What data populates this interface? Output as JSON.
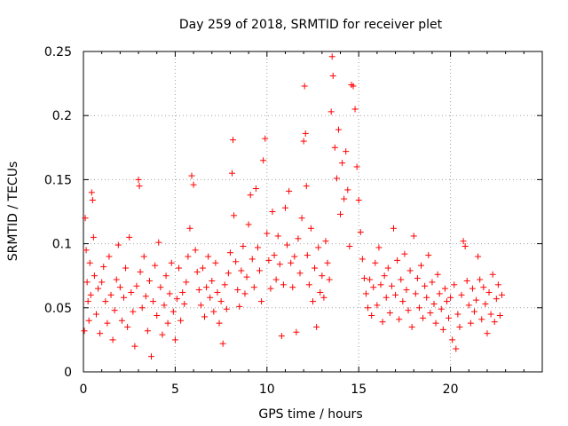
{
  "chart_data": {
    "type": "scatter",
    "title": "Day 259 of 2018, SRMTID for receiver plet",
    "xlabel": "GPS time / hours",
    "ylabel": "SRMTID / TECUs",
    "xlim": [
      0,
      25
    ],
    "ylim": [
      0,
      0.25
    ],
    "x_ticks": [
      0,
      5,
      10,
      15,
      20
    ],
    "x_tick_labels": [
      "0",
      "5",
      "10",
      "15",
      "20"
    ],
    "y_ticks": [
      0,
      0.05,
      0.1,
      0.15,
      0.2,
      0.25
    ],
    "y_tick_labels": [
      "0",
      "0.05",
      "0.1",
      "0.15",
      "0.2",
      "0.25"
    ],
    "grid": true,
    "marker": "+",
    "marker_color": "#ff0000",
    "series": [
      {
        "name": "plet",
        "points": [
          [
            0.05,
            0.032
          ],
          [
            0.1,
            0.12
          ],
          [
            0.15,
            0.095
          ],
          [
            0.2,
            0.07
          ],
          [
            0.25,
            0.055
          ],
          [
            0.3,
            0.04
          ],
          [
            0.35,
            0.085
          ],
          [
            0.4,
            0.06
          ],
          [
            0.45,
            0.14
          ],
          [
            0.5,
            0.134
          ],
          [
            0.55,
            0.105
          ],
          [
            0.6,
            0.075
          ],
          [
            0.7,
            0.045
          ],
          [
            0.8,
            0.065
          ],
          [
            0.9,
            0.03
          ],
          [
            1.0,
            0.07
          ],
          [
            1.1,
            0.082
          ],
          [
            1.2,
            0.055
          ],
          [
            1.3,
            0.038
          ],
          [
            1.4,
            0.09
          ],
          [
            1.5,
            0.06
          ],
          [
            1.6,
            0.025
          ],
          [
            1.7,
            0.048
          ],
          [
            1.8,
            0.072
          ],
          [
            1.9,
            0.099
          ],
          [
            2.0,
            0.066
          ],
          [
            2.1,
            0.04
          ],
          [
            2.2,
            0.058
          ],
          [
            2.3,
            0.081
          ],
          [
            2.4,
            0.035
          ],
          [
            2.5,
            0.105
          ],
          [
            2.6,
            0.062
          ],
          [
            2.7,
            0.047
          ],
          [
            2.8,
            0.02
          ],
          [
            2.9,
            0.067
          ],
          [
            3.0,
            0.15
          ],
          [
            3.05,
            0.145
          ],
          [
            3.1,
            0.078
          ],
          [
            3.2,
            0.05
          ],
          [
            3.3,
            0.09
          ],
          [
            3.4,
            0.059
          ],
          [
            3.5,
            0.032
          ],
          [
            3.6,
            0.071
          ],
          [
            3.7,
            0.012
          ],
          [
            3.8,
            0.055
          ],
          [
            3.9,
            0.083
          ],
          [
            4.0,
            0.044
          ],
          [
            4.1,
            0.101
          ],
          [
            4.2,
            0.066
          ],
          [
            4.3,
            0.029
          ],
          [
            4.4,
            0.052
          ],
          [
            4.5,
            0.075
          ],
          [
            4.6,
            0.038
          ],
          [
            4.7,
            0.061
          ],
          [
            4.8,
            0.085
          ],
          [
            4.9,
            0.047
          ],
          [
            5.0,
            0.025
          ],
          [
            5.1,
            0.057
          ],
          [
            5.2,
            0.081
          ],
          [
            5.3,
            0.04
          ],
          [
            5.4,
            0.062
          ],
          [
            5.5,
            0.053
          ],
          [
            5.6,
            0.07
          ],
          [
            5.7,
            0.09
          ],
          [
            5.8,
            0.112
          ],
          [
            5.9,
            0.153
          ],
          [
            6.0,
            0.146
          ],
          [
            6.1,
            0.095
          ],
          [
            6.2,
            0.078
          ],
          [
            6.3,
            0.064
          ],
          [
            6.4,
            0.052
          ],
          [
            6.5,
            0.081
          ],
          [
            6.6,
            0.043
          ],
          [
            6.7,
            0.066
          ],
          [
            6.8,
            0.09
          ],
          [
            6.9,
            0.058
          ],
          [
            7.0,
            0.071
          ],
          [
            7.1,
            0.047
          ],
          [
            7.2,
            0.085
          ],
          [
            7.3,
            0.062
          ],
          [
            7.4,
            0.038
          ],
          [
            7.5,
            0.055
          ],
          [
            7.6,
            0.022
          ],
          [
            7.7,
            0.068
          ],
          [
            7.8,
            0.049
          ],
          [
            7.9,
            0.077
          ],
          [
            8.0,
            0.093
          ],
          [
            8.1,
            0.155
          ],
          [
            8.15,
            0.181
          ],
          [
            8.2,
            0.122
          ],
          [
            8.3,
            0.086
          ],
          [
            8.4,
            0.064
          ],
          [
            8.5,
            0.051
          ],
          [
            8.6,
            0.079
          ],
          [
            8.7,
            0.098
          ],
          [
            8.8,
            0.061
          ],
          [
            8.9,
            0.074
          ],
          [
            9.0,
            0.115
          ],
          [
            9.1,
            0.138
          ],
          [
            9.2,
            0.088
          ],
          [
            9.3,
            0.066
          ],
          [
            9.4,
            0.143
          ],
          [
            9.5,
            0.097
          ],
          [
            9.6,
            0.079
          ],
          [
            9.7,
            0.055
          ],
          [
            9.8,
            0.165
          ],
          [
            9.9,
            0.182
          ],
          [
            10.0,
            0.108
          ],
          [
            10.1,
            0.087
          ],
          [
            10.2,
            0.065
          ],
          [
            10.3,
            0.125
          ],
          [
            10.4,
            0.091
          ],
          [
            10.5,
            0.072
          ],
          [
            10.6,
            0.106
          ],
          [
            10.7,
            0.084
          ],
          [
            10.8,
            0.028
          ],
          [
            10.9,
            0.068
          ],
          [
            11.0,
            0.128
          ],
          [
            11.1,
            0.099
          ],
          [
            11.2,
            0.141
          ],
          [
            11.3,
            0.085
          ],
          [
            11.4,
            0.066
          ],
          [
            11.5,
            0.09
          ],
          [
            11.6,
            0.031
          ],
          [
            11.7,
            0.104
          ],
          [
            11.8,
            0.077
          ],
          [
            11.9,
            0.12
          ],
          [
            12.0,
            0.18
          ],
          [
            12.05,
            0.223
          ],
          [
            12.1,
            0.186
          ],
          [
            12.15,
            0.145
          ],
          [
            12.2,
            0.091
          ],
          [
            12.3,
            0.068
          ],
          [
            12.4,
            0.112
          ],
          [
            12.5,
            0.055
          ],
          [
            12.6,
            0.081
          ],
          [
            12.7,
            0.035
          ],
          [
            12.8,
            0.097
          ],
          [
            12.9,
            0.062
          ],
          [
            13.0,
            0.075
          ],
          [
            13.1,
            0.058
          ],
          [
            13.2,
            0.102
          ],
          [
            13.3,
            0.085
          ],
          [
            13.4,
            0.072
          ],
          [
            13.5,
            0.203
          ],
          [
            13.55,
            0.246
          ],
          [
            13.6,
            0.231
          ],
          [
            13.7,
            0.175
          ],
          [
            13.8,
            0.151
          ],
          [
            13.9,
            0.189
          ],
          [
            14.0,
            0.123
          ],
          [
            14.1,
            0.163
          ],
          [
            14.2,
            0.135
          ],
          [
            14.3,
            0.172
          ],
          [
            14.4,
            0.142
          ],
          [
            14.5,
            0.098
          ],
          [
            14.6,
            0.224
          ],
          [
            14.7,
            0.223
          ],
          [
            14.8,
            0.205
          ],
          [
            14.9,
            0.16
          ],
          [
            15.0,
            0.134
          ],
          [
            15.1,
            0.109
          ],
          [
            15.2,
            0.088
          ],
          [
            15.3,
            0.073
          ],
          [
            15.4,
            0.061
          ],
          [
            15.5,
            0.05
          ],
          [
            15.6,
            0.072
          ],
          [
            15.7,
            0.044
          ],
          [
            15.8,
            0.066
          ],
          [
            15.9,
            0.085
          ],
          [
            16.0,
            0.052
          ],
          [
            16.1,
            0.097
          ],
          [
            16.2,
            0.068
          ],
          [
            16.3,
            0.039
          ],
          [
            16.4,
            0.075
          ],
          [
            16.5,
            0.058
          ],
          [
            16.6,
            0.081
          ],
          [
            16.7,
            0.046
          ],
          [
            16.8,
            0.067
          ],
          [
            16.9,
            0.112
          ],
          [
            17.0,
            0.06
          ],
          [
            17.1,
            0.087
          ],
          [
            17.2,
            0.041
          ],
          [
            17.3,
            0.072
          ],
          [
            17.4,
            0.055
          ],
          [
            17.5,
            0.092
          ],
          [
            17.6,
            0.064
          ],
          [
            17.7,
            0.048
          ],
          [
            17.8,
            0.079
          ],
          [
            17.9,
            0.035
          ],
          [
            18.0,
            0.106
          ],
          [
            18.1,
            0.061
          ],
          [
            18.2,
            0.073
          ],
          [
            18.3,
            0.05
          ],
          [
            18.4,
            0.083
          ],
          [
            18.5,
            0.042
          ],
          [
            18.6,
            0.067
          ],
          [
            18.7,
            0.058
          ],
          [
            18.8,
            0.091
          ],
          [
            18.9,
            0.046
          ],
          [
            19.0,
            0.07
          ],
          [
            19.1,
            0.053
          ],
          [
            19.2,
            0.038
          ],
          [
            19.3,
            0.076
          ],
          [
            19.4,
            0.061
          ],
          [
            19.5,
            0.049
          ],
          [
            19.6,
            0.033
          ],
          [
            19.7,
            0.065
          ],
          [
            19.8,
            0.055
          ],
          [
            19.9,
            0.042
          ],
          [
            20.0,
            0.058
          ],
          [
            20.1,
            0.025
          ],
          [
            20.2,
            0.068
          ],
          [
            20.3,
            0.018
          ],
          [
            20.4,
            0.045
          ],
          [
            20.5,
            0.035
          ],
          [
            20.6,
            0.06
          ],
          [
            20.7,
            0.102
          ],
          [
            20.8,
            0.098
          ],
          [
            20.9,
            0.071
          ],
          [
            21.0,
            0.052
          ],
          [
            21.1,
            0.038
          ],
          [
            21.2,
            0.065
          ],
          [
            21.3,
            0.047
          ],
          [
            21.4,
            0.056
          ],
          [
            21.5,
            0.09
          ],
          [
            21.6,
            0.072
          ],
          [
            21.7,
            0.041
          ],
          [
            21.8,
            0.066
          ],
          [
            21.9,
            0.053
          ],
          [
            22.0,
            0.03
          ],
          [
            22.1,
            0.062
          ],
          [
            22.2,
            0.045
          ],
          [
            22.3,
            0.076
          ],
          [
            22.4,
            0.039
          ],
          [
            22.5,
            0.057
          ],
          [
            22.6,
            0.068
          ],
          [
            22.7,
            0.044
          ],
          [
            22.8,
            0.06
          ]
        ]
      }
    ]
  }
}
